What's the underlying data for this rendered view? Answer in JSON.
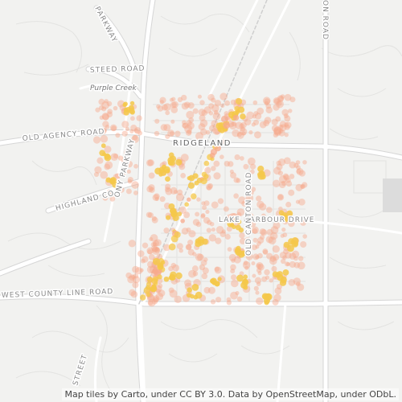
{
  "map": {
    "labels": {
      "steed_road": "STEED ROAD",
      "purple_creek": "Purple Creek",
      "old_agency_road": "OLD AGENCY ROAD",
      "ridgeland": "RIDGELAND",
      "highland_co": "HIGHLAND CO",
      "parkway": "PARKWAY",
      "colony_parkway": "ONY PARKWAY",
      "lake_harbour": "LAKE HARBOUR DRIVE",
      "west_county_line": "WEST COUNTY LINE ROAD",
      "old_canton_top": "ON ROAD",
      "old_canton": "OLD CANTON ROAD",
      "street_bottom": "STREET"
    },
    "attribution": "Map tiles by Carto, under CC BY 3.0. Data by OpenStreetMap, under ODbL.",
    "colors": {
      "background": "#f2f2f0",
      "road": "#ffffff",
      "road_casing": "#d9d9d9",
      "minor_road": "#e2e2e2",
      "heat_outer": "#f7a98c",
      "heat_core": "#f5c84a"
    }
  }
}
